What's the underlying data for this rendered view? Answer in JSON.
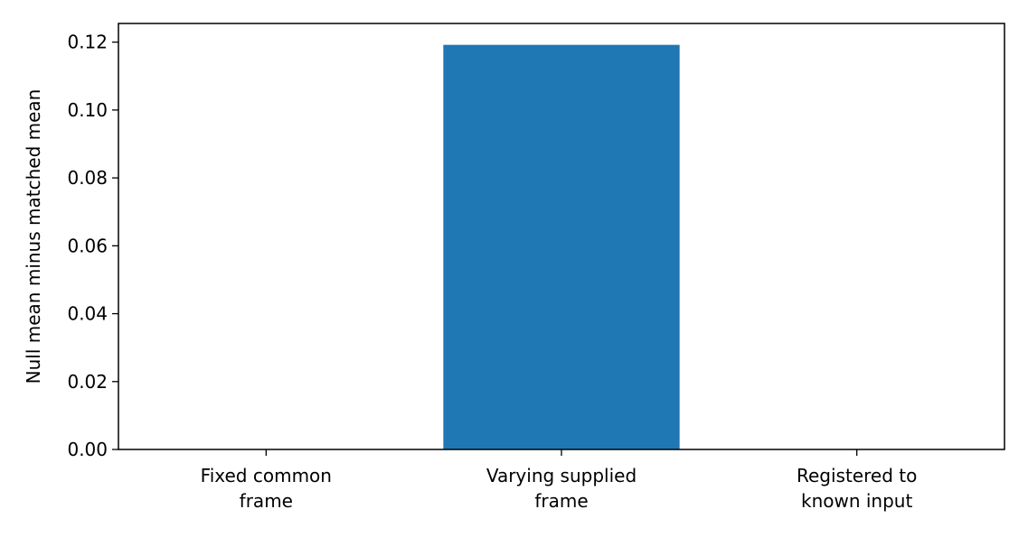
{
  "chart_data": {
    "type": "bar",
    "title": "",
    "xlabel": "",
    "ylabel": "Null mean minus matched mean",
    "categories": [
      [
        "Fixed common",
        "frame"
      ],
      [
        "Varying supplied",
        "frame"
      ],
      [
        "Registered to",
        "known input"
      ]
    ],
    "values": [
      0.0,
      0.1192,
      0.0
    ],
    "ylim": [
      0,
      0.1255
    ],
    "yticks": [
      0.0,
      0.02,
      0.04,
      0.06,
      0.08,
      0.1,
      0.12
    ],
    "ytick_labels": [
      "0.00",
      "0.02",
      "0.04",
      "0.06",
      "0.08",
      "0.10",
      "0.12"
    ],
    "bar_color": "#1f77b4",
    "grid": false,
    "legend": "none"
  }
}
